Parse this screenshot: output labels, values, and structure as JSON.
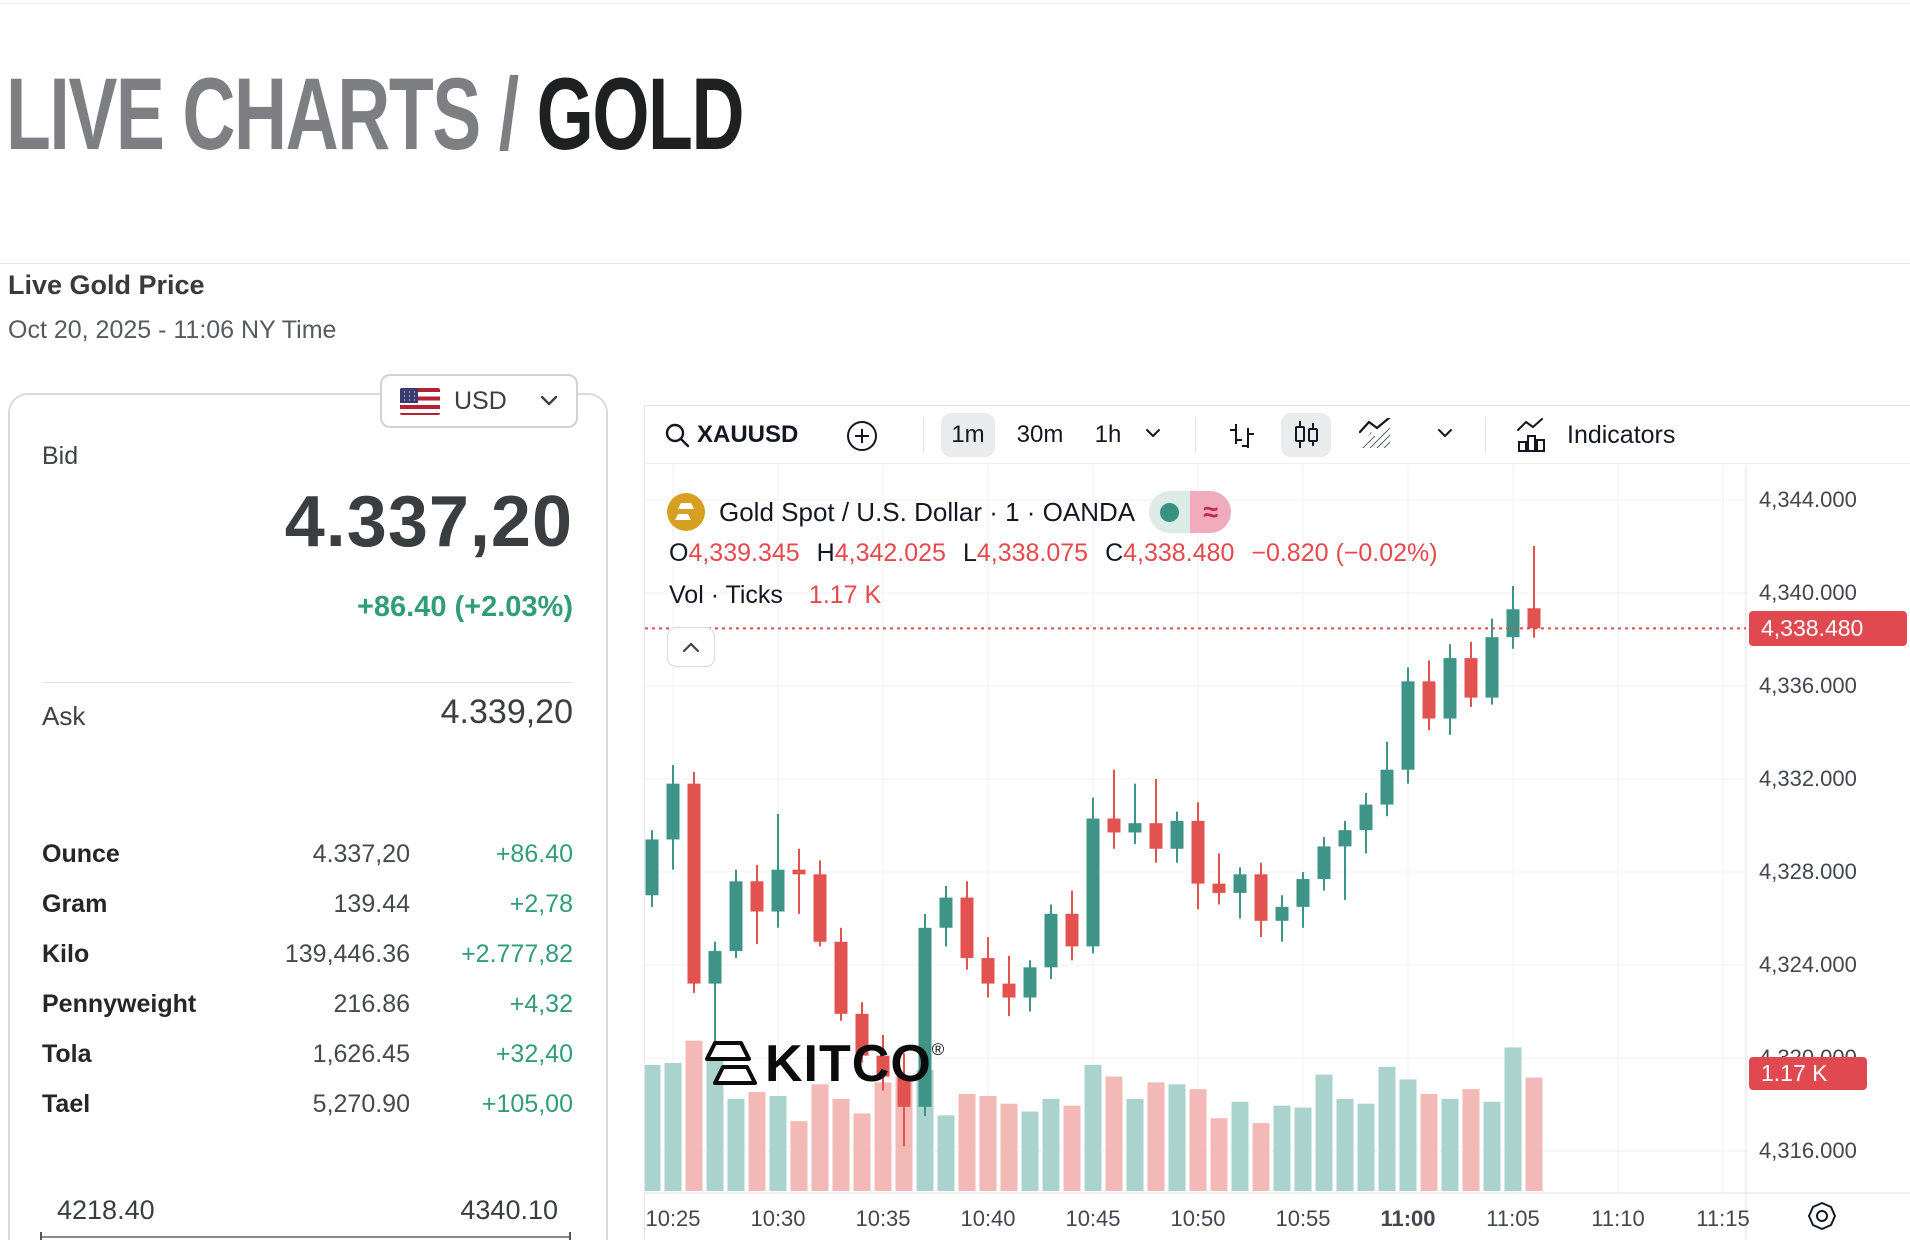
{
  "header": {
    "title_gray": "LIVE CHARTS /",
    "title_black": "GOLD",
    "subtitle": "Live Gold Price",
    "timestamp": "Oct 20, 2025 - 11:06 NY Time"
  },
  "currency": {
    "code": "USD",
    "flag": "us-flag"
  },
  "quote": {
    "bid_label": "Bid",
    "bid_price": "4.337,20",
    "bid_change": "+86.40 (+2.03%)",
    "ask_label": "Ask",
    "ask_price": "4.339,20",
    "units": [
      {
        "label": "Ounce",
        "value": "4.337,20",
        "change": "+86.40"
      },
      {
        "label": "Gram",
        "value": "139.44",
        "change": "+2,78"
      },
      {
        "label": "Kilo",
        "value": "139,446.36",
        "change": "+2.777,82"
      },
      {
        "label": "Pennyweight",
        "value": "216.86",
        "change": "+4,32"
      },
      {
        "label": "Tola",
        "value": "1,626.45",
        "change": "+32,40"
      },
      {
        "label": "Tael",
        "value": "5,270.90",
        "change": "+105,00"
      }
    ],
    "range_low": "4218.40",
    "range_high": "4340.10"
  },
  "toolbar": {
    "symbol": "XAUUSD",
    "intervals": [
      "1m",
      "30m",
      "1h"
    ],
    "selected_interval": "1m",
    "indicators_label": "Indicators"
  },
  "legend": {
    "title": "Gold Spot / U.S. Dollar · 1 · OANDA",
    "ohlc": [
      {
        "k": "O",
        "v": "4,339.345"
      },
      {
        "k": "H",
        "v": "4,342.025"
      },
      {
        "k": "L",
        "v": "4,338.075"
      },
      {
        "k": "C",
        "v": "4,338.480"
      }
    ],
    "change": "−0.820 (−0.02%)",
    "vol_label": "Vol · Ticks",
    "vol_value": "1.17 K"
  },
  "price_tag": "4,338.480",
  "vol_tag": "1.17 K",
  "watermark_text": "KITCO",
  "colors": {
    "candle_up": "#3f9488",
    "candle_down": "#e25350",
    "volume_up": "#aad3cd",
    "volume_down": "#f2b9b6",
    "price_line": "#e0494f",
    "tag_bg": "#e0494f",
    "grid": "#f2f2f2",
    "axis_border": "#dfe2e6",
    "green_text": "#319c78",
    "red_text": "#e5494d"
  },
  "chart_data": {
    "type": "candlestick+volume",
    "symbol": "Gold Spot / U.S. Dollar (XAUUSD)",
    "exchange": "OANDA",
    "interval": "1m",
    "last_price": 4338.48,
    "last_change": -0.82,
    "last_change_pct": -0.02,
    "last_volume_k": 1.17,
    "y_axis": {
      "min": 4313,
      "max": 4345.5,
      "tick_step": 4
    },
    "y_ticks": [
      {
        "label": "4,344.000",
        "price": 4344
      },
      {
        "label": "4,340.000",
        "price": 4340
      },
      {
        "label": "4,336.000",
        "price": 4336
      },
      {
        "label": "4,332.000",
        "price": 4332
      },
      {
        "label": "4,328.000",
        "price": 4328
      },
      {
        "label": "4,324.000",
        "price": 4324
      },
      {
        "label": "4,320.000",
        "price": 4320
      },
      {
        "label": "4,316.000",
        "price": 4316
      }
    ],
    "x_ticks": [
      {
        "label": "10:25",
        "i": 1,
        "bold": false
      },
      {
        "label": "10:30",
        "i": 6,
        "bold": false
      },
      {
        "label": "10:35",
        "i": 11,
        "bold": false
      },
      {
        "label": "10:40",
        "i": 16,
        "bold": false
      },
      {
        "label": "10:45",
        "i": 21,
        "bold": false
      },
      {
        "label": "10:50",
        "i": 26,
        "bold": false
      },
      {
        "label": "10:55",
        "i": 31,
        "bold": false
      },
      {
        "label": "11:00",
        "i": 36,
        "bold": true
      },
      {
        "label": "11:05",
        "i": 41,
        "bold": false
      },
      {
        "label": "11:10",
        "i": 46,
        "bold": false
      },
      {
        "label": "11:15",
        "i": 51,
        "bold": false
      }
    ],
    "candles": [
      {
        "t": "10:24",
        "o": 4327.0,
        "h": 4329.8,
        "l": 4326.5,
        "c": 4329.4,
        "v": 1.3
      },
      {
        "t": "10:25",
        "o": 4329.4,
        "h": 4332.6,
        "l": 4328.1,
        "c": 4331.8,
        "v": 1.32
      },
      {
        "t": "10:26",
        "o": 4331.8,
        "h": 4332.3,
        "l": 4322.8,
        "c": 4323.2,
        "v": 1.55
      },
      {
        "t": "10:27",
        "o": 4323.2,
        "h": 4325.0,
        "l": 4320.7,
        "c": 4324.6,
        "v": 1.42
      },
      {
        "t": "10:28",
        "o": 4324.6,
        "h": 4328.1,
        "l": 4324.3,
        "c": 4327.6,
        "v": 0.95
      },
      {
        "t": "10:29",
        "o": 4327.6,
        "h": 4328.3,
        "l": 4324.9,
        "c": 4326.3,
        "v": 1.02
      },
      {
        "t": "10:30",
        "o": 4326.3,
        "h": 4330.5,
        "l": 4325.6,
        "c": 4328.1,
        "v": 0.98
      },
      {
        "t": "10:31",
        "o": 4328.1,
        "h": 4329.0,
        "l": 4326.2,
        "c": 4327.9,
        "v": 0.72
      },
      {
        "t": "10:32",
        "o": 4327.9,
        "h": 4328.5,
        "l": 4324.8,
        "c": 4325.0,
        "v": 1.1
      },
      {
        "t": "10:33",
        "o": 4325.0,
        "h": 4325.6,
        "l": 4321.6,
        "c": 4321.9,
        "v": 0.95
      },
      {
        "t": "10:34",
        "o": 4321.9,
        "h": 4322.4,
        "l": 4319.8,
        "c": 4320.1,
        "v": 0.8
      },
      {
        "t": "10:35",
        "o": 4320.1,
        "h": 4321.0,
        "l": 4318.6,
        "c": 4319.2,
        "v": 1.12
      },
      {
        "t": "10:36",
        "o": 4319.2,
        "h": 4320.2,
        "l": 4316.2,
        "c": 4317.9,
        "v": 1.18
      },
      {
        "t": "10:37",
        "o": 4317.9,
        "h": 4326.2,
        "l": 4317.5,
        "c": 4325.6,
        "v": 1.25
      },
      {
        "t": "10:38",
        "o": 4325.6,
        "h": 4327.4,
        "l": 4324.8,
        "c": 4326.9,
        "v": 0.78
      },
      {
        "t": "10:39",
        "o": 4326.9,
        "h": 4327.6,
        "l": 4323.8,
        "c": 4324.3,
        "v": 1.0
      },
      {
        "t": "10:40",
        "o": 4324.3,
        "h": 4325.2,
        "l": 4322.6,
        "c": 4323.2,
        "v": 0.98
      },
      {
        "t": "10:41",
        "o": 4323.2,
        "h": 4324.4,
        "l": 4321.8,
        "c": 4322.6,
        "v": 0.9
      },
      {
        "t": "10:42",
        "o": 4322.6,
        "h": 4324.2,
        "l": 4322.0,
        "c": 4323.9,
        "v": 0.82
      },
      {
        "t": "10:43",
        "o": 4323.9,
        "h": 4326.6,
        "l": 4323.4,
        "c": 4326.2,
        "v": 0.95
      },
      {
        "t": "10:44",
        "o": 4326.2,
        "h": 4327.2,
        "l": 4324.2,
        "c": 4324.8,
        "v": 0.88
      },
      {
        "t": "10:45",
        "o": 4324.8,
        "h": 4331.2,
        "l": 4324.5,
        "c": 4330.3,
        "v": 1.3
      },
      {
        "t": "10:46",
        "o": 4330.3,
        "h": 4332.4,
        "l": 4329.0,
        "c": 4329.7,
        "v": 1.18
      },
      {
        "t": "10:47",
        "o": 4329.7,
        "h": 4331.8,
        "l": 4329.2,
        "c": 4330.1,
        "v": 0.95
      },
      {
        "t": "10:48",
        "o": 4330.1,
        "h": 4332.0,
        "l": 4328.4,
        "c": 4329.0,
        "v": 1.12
      },
      {
        "t": "10:49",
        "o": 4329.0,
        "h": 4330.6,
        "l": 4328.4,
        "c": 4330.2,
        "v": 1.1
      },
      {
        "t": "10:50",
        "o": 4330.2,
        "h": 4331.0,
        "l": 4326.4,
        "c": 4327.5,
        "v": 1.05
      },
      {
        "t": "10:51",
        "o": 4327.5,
        "h": 4328.8,
        "l": 4326.6,
        "c": 4327.1,
        "v": 0.75
      },
      {
        "t": "10:52",
        "o": 4327.1,
        "h": 4328.2,
        "l": 4326.0,
        "c": 4327.9,
        "v": 0.92
      },
      {
        "t": "10:53",
        "o": 4327.9,
        "h": 4328.4,
        "l": 4325.2,
        "c": 4325.9,
        "v": 0.7
      },
      {
        "t": "10:54",
        "o": 4325.9,
        "h": 4327.0,
        "l": 4325.0,
        "c": 4326.5,
        "v": 0.88
      },
      {
        "t": "10:55",
        "o": 4326.5,
        "h": 4328.0,
        "l": 4325.6,
        "c": 4327.7,
        "v": 0.86
      },
      {
        "t": "10:56",
        "o": 4327.7,
        "h": 4329.5,
        "l": 4327.2,
        "c": 4329.1,
        "v": 1.2
      },
      {
        "t": "10:57",
        "o": 4329.1,
        "h": 4330.2,
        "l": 4326.8,
        "c": 4329.8,
        "v": 0.95
      },
      {
        "t": "10:58",
        "o": 4329.8,
        "h": 4331.4,
        "l": 4328.8,
        "c": 4330.9,
        "v": 0.9
      },
      {
        "t": "10:59",
        "o": 4330.9,
        "h": 4333.6,
        "l": 4330.4,
        "c": 4332.4,
        "v": 1.28
      },
      {
        "t": "11:00",
        "o": 4332.4,
        "h": 4336.8,
        "l": 4331.8,
        "c": 4336.2,
        "v": 1.15
      },
      {
        "t": "11:01",
        "o": 4336.2,
        "h": 4337.1,
        "l": 4334.1,
        "c": 4334.6,
        "v": 1.0
      },
      {
        "t": "11:02",
        "o": 4334.6,
        "h": 4337.8,
        "l": 4333.9,
        "c": 4337.2,
        "v": 0.95
      },
      {
        "t": "11:03",
        "o": 4337.2,
        "h": 4337.9,
        "l": 4335.1,
        "c": 4335.5,
        "v": 1.05
      },
      {
        "t": "11:04",
        "o": 4335.5,
        "h": 4338.9,
        "l": 4335.2,
        "c": 4338.1,
        "v": 0.92
      },
      {
        "t": "11:05",
        "o": 4338.1,
        "h": 4340.3,
        "l": 4337.6,
        "c": 4339.3,
        "v": 1.48
      },
      {
        "t": "11:06",
        "o": 4339.345,
        "h": 4342.025,
        "l": 4338.075,
        "c": 4338.48,
        "v": 1.17
      }
    ]
  }
}
